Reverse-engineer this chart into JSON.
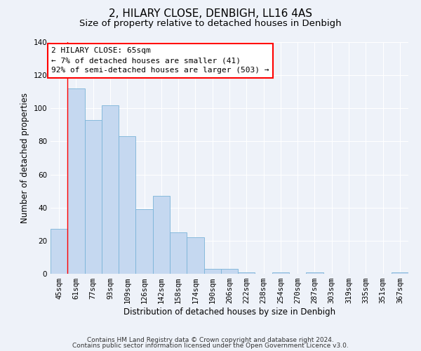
{
  "title": "2, HILARY CLOSE, DENBIGH, LL16 4AS",
  "subtitle": "Size of property relative to detached houses in Denbigh",
  "xlabel": "Distribution of detached houses by size in Denbigh",
  "ylabel": "Number of detached properties",
  "bar_color": "#c5d8f0",
  "bar_edge_color": "#7ab4d8",
  "categories": [
    "45sqm",
    "61sqm",
    "77sqm",
    "93sqm",
    "109sqm",
    "126sqm",
    "142sqm",
    "158sqm",
    "174sqm",
    "190sqm",
    "206sqm",
    "222sqm",
    "238sqm",
    "254sqm",
    "270sqm",
    "287sqm",
    "303sqm",
    "319sqm",
    "335sqm",
    "351sqm",
    "367sqm"
  ],
  "values": [
    27,
    112,
    93,
    102,
    83,
    39,
    47,
    25,
    22,
    3,
    3,
    1,
    0,
    1,
    0,
    1,
    0,
    0,
    0,
    0,
    1
  ],
  "ylim": [
    0,
    140
  ],
  "yticks": [
    0,
    20,
    40,
    60,
    80,
    100,
    120,
    140
  ],
  "red_line_index": 1,
  "annotation_text": "2 HILARY CLOSE: 65sqm\n← 7% of detached houses are smaller (41)\n92% of semi-detached houses are larger (503) →",
  "footer_line1": "Contains HM Land Registry data © Crown copyright and database right 2024.",
  "footer_line2": "Contains public sector information licensed under the Open Government Licence v3.0.",
  "background_color": "#eef2f9",
  "grid_color": "#ffffff",
  "title_fontsize": 11,
  "subtitle_fontsize": 9.5,
  "axis_label_fontsize": 8.5,
  "tick_fontsize": 7.5,
  "annotation_fontsize": 8,
  "footer_fontsize": 6.5
}
